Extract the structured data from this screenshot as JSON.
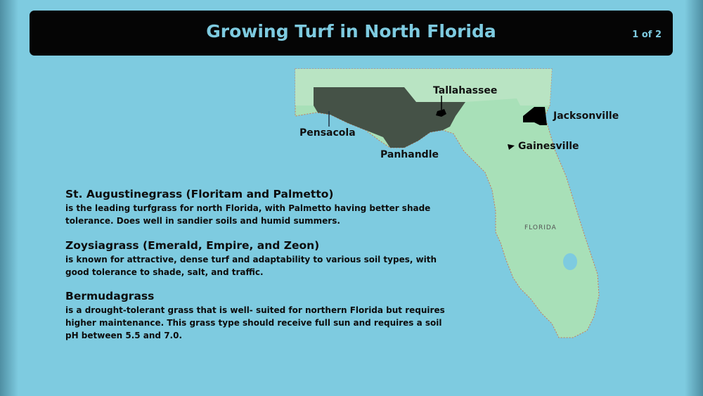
{
  "header": {
    "title": "Growing Turf in North Florida",
    "page_indicator": "1 of 2"
  },
  "map": {
    "labels": {
      "tallahassee": "Tallahassee",
      "pensacola": "Pensacola",
      "panhandle": "Panhandle",
      "jacksonville": "Jacksonville",
      "gainesville": "Gainesville",
      "state": "FLORIDA"
    },
    "colors": {
      "water": "#7ecbe0",
      "land": "#a8e0b8",
      "highlight": "#3f4a40",
      "city": "#000000"
    }
  },
  "sections": [
    {
      "heading": "St. Augustinegrass (Floritam and Palmetto)",
      "body": "is the leading turfgrass for north Florida, with Palmetto having better shade tolerance. Does well in sandier soils and humid summers."
    },
    {
      "heading": "Zoysiagrass (Emerald, Empire, and Zeon)",
      "body": "is known for attractive, dense turf and adaptability to various soil types, with good tolerance to shade, salt, and traffic."
    },
    {
      "heading": "Bermudagrass",
      "body": "is a drought-tolerant grass that is well- suited for northern Florida but requires higher maintenance. This grass type should receive full sun and requires a soil pH between 5.5 and 7.0."
    }
  ]
}
